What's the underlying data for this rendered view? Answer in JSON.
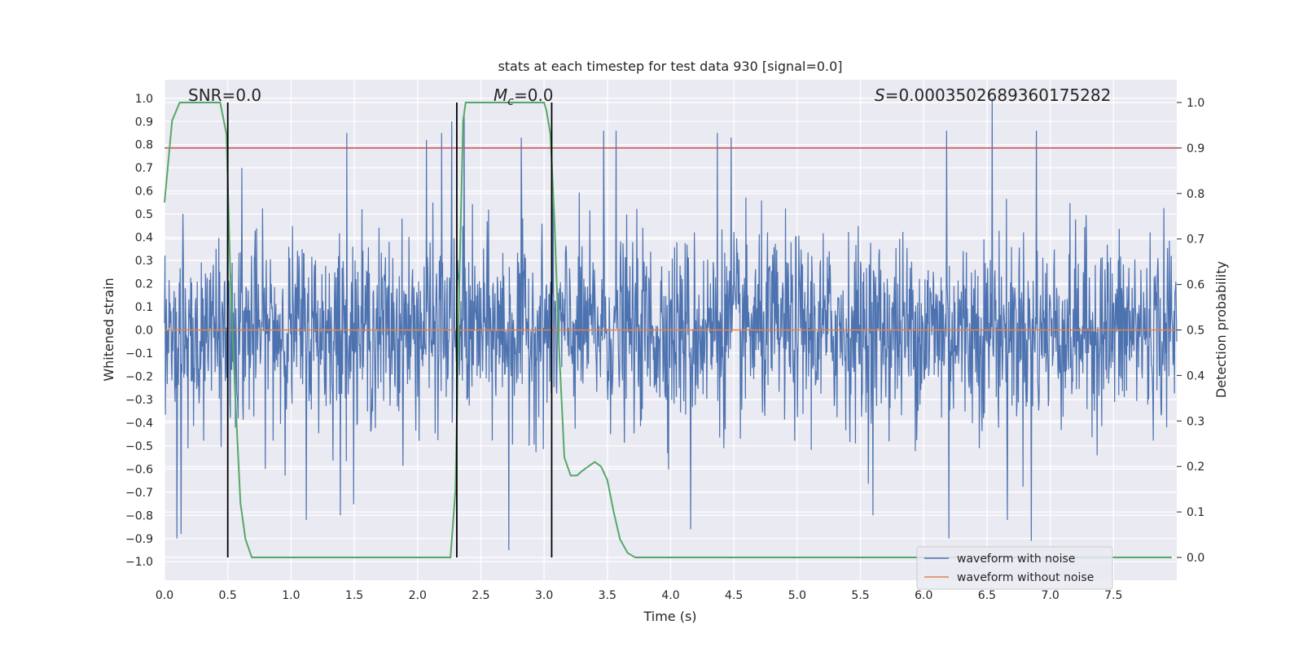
{
  "chart_data": {
    "type": "line",
    "title": "stats at each timestep for test data 930 [signal=0.0]",
    "xlabel": "Time (s)",
    "ylabel_left": "Whitened strain",
    "ylabel_right": "Detection probability",
    "xlim": [
      0.0,
      8.0
    ],
    "ylim_left": [
      -1.08,
      1.08
    ],
    "ylim_right": [
      -0.05,
      1.05
    ],
    "xticks": [
      0.0,
      0.5,
      1.0,
      1.5,
      2.0,
      2.5,
      3.0,
      3.5,
      4.0,
      4.5,
      5.0,
      5.5,
      6.0,
      6.5,
      7.0,
      7.5
    ],
    "yticks_left": [
      -1.0,
      -0.9,
      -0.8,
      -0.7,
      -0.6,
      -0.5,
      -0.4,
      -0.3,
      -0.2,
      -0.1,
      0.0,
      0.1,
      0.2,
      0.3,
      0.4,
      0.5,
      0.6,
      0.7,
      0.8,
      0.9,
      1.0
    ],
    "yticks_right": [
      0.0,
      0.1,
      0.2,
      0.3,
      0.4,
      0.5,
      0.6,
      0.7,
      0.8,
      0.9,
      1.0
    ],
    "grid": true,
    "legend_position": "bottom-right",
    "annotations": {
      "snr_prefix": "SNR=",
      "snr_value": "0.0",
      "mc_symbol": "M",
      "mc_subscript": "c",
      "mc_value": "=0.0",
      "s_symbol": "S",
      "s_value": "=0.0003502689360175282"
    },
    "threshold_right": 0.9,
    "vertical_lines_x": [
      0.5,
      2.31,
      3.06
    ],
    "series": [
      {
        "name": "waveform with noise",
        "color": "#4c72b0",
        "axis": "left",
        "description_level": "noise band mostly within ±0.45 with spikes to ±1.0",
        "noise_sigma": 0.2,
        "spike_peaks": [
          {
            "x": 1.44,
            "y": 0.85
          },
          {
            "x": 2.07,
            "y": 0.82
          },
          {
            "x": 2.19,
            "y": 0.85
          },
          {
            "x": 2.27,
            "y": 0.9
          },
          {
            "x": 2.37,
            "y": 0.93
          },
          {
            "x": 2.82,
            "y": 0.83
          },
          {
            "x": 3.47,
            "y": 0.86
          },
          {
            "x": 3.57,
            "y": 0.86
          },
          {
            "x": 4.37,
            "y": 0.85
          },
          {
            "x": 4.48,
            "y": 0.83
          },
          {
            "x": 6.18,
            "y": 0.86
          },
          {
            "x": 6.54,
            "y": 1.0
          },
          {
            "x": 6.89,
            "y": 0.86
          },
          {
            "x": 0.5,
            "y": 0.78
          },
          {
            "x": 0.61,
            "y": 0.7
          },
          {
            "x": 2.72,
            "y": -0.95
          },
          {
            "x": 6.2,
            "y": -0.9
          },
          {
            "x": 6.85,
            "y": -0.91
          },
          {
            "x": 0.1,
            "y": -0.9
          },
          {
            "x": 0.13,
            "y": -0.88
          },
          {
            "x": 4.16,
            "y": -0.86
          },
          {
            "x": 1.12,
            "y": -0.82
          },
          {
            "x": 1.39,
            "y": -0.8
          },
          {
            "x": 5.6,
            "y": -0.8
          },
          {
            "x": 6.66,
            "y": -0.82
          }
        ]
      },
      {
        "name": "waveform without noise",
        "color": "#dd8452",
        "axis": "left",
        "x": [
          0.0,
          8.0
        ],
        "y": [
          0.0,
          0.0
        ]
      },
      {
        "name": "detection probability",
        "color": "#55a868",
        "axis": "right",
        "x": [
          0.0,
          0.06,
          0.12,
          0.2,
          0.3,
          0.44,
          0.49,
          0.52,
          0.56,
          0.6,
          0.64,
          0.69,
          0.74,
          1.0,
          1.5,
          2.0,
          2.26,
          2.3,
          2.33,
          2.36,
          2.38,
          2.5,
          2.8,
          3.0,
          3.02,
          3.05,
          3.08,
          3.12,
          3.16,
          3.21,
          3.26,
          3.3,
          3.35,
          3.4,
          3.45,
          3.5,
          3.55,
          3.6,
          3.66,
          3.72,
          4.0,
          5.0,
          6.0,
          7.0,
          7.96
        ],
        "y": [
          0.78,
          0.96,
          1.0,
          1.0,
          1.0,
          1.0,
          0.93,
          0.62,
          0.35,
          0.12,
          0.04,
          0.0,
          0.0,
          0.0,
          0.0,
          0.0,
          0.0,
          0.15,
          0.6,
          0.96,
          1.0,
          1.0,
          1.0,
          1.0,
          0.98,
          0.93,
          0.75,
          0.45,
          0.22,
          0.18,
          0.18,
          0.19,
          0.2,
          0.21,
          0.2,
          0.17,
          0.1,
          0.04,
          0.01,
          0.0,
          0.0,
          0.0,
          0.0,
          0.0,
          0.0
        ]
      }
    ],
    "threshold_color": "#c44e52",
    "vline_color": "#000000",
    "plot_bg": "#eaeaf2",
    "grid_color": "#ffffff"
  }
}
